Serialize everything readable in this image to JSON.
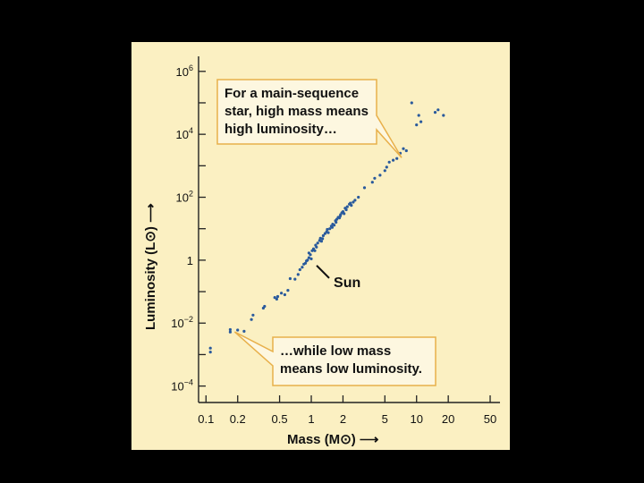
{
  "colors": {
    "background": "#000000",
    "panel": "#fbf0c2",
    "callout_fill": "#fdf7e0",
    "callout_border": "#e8b04a",
    "point": "#2a5a9c",
    "axis": "#222222"
  },
  "chart_data": {
    "type": "scatter",
    "x_scale": "log",
    "y_scale": "log",
    "xlabel": "Mass (M",
    "ylabel": "Luminosity (L",
    "solar_symbol": "⊙",
    "axis_arrow": "⟶",
    "xlim": [
      0.085,
      62
    ],
    "ylim": [
      3e-05,
      3000000
    ],
    "x_ticks": [
      {
        "value": 0.1,
        "label": "0.1"
      },
      {
        "value": 0.2,
        "label": "0.2"
      },
      {
        "value": 0.5,
        "label": "0.5"
      },
      {
        "value": 1,
        "label": "1"
      },
      {
        "value": 2,
        "label": "2"
      },
      {
        "value": 5,
        "label": "5"
      },
      {
        "value": 10,
        "label": "10"
      },
      {
        "value": 20,
        "label": "20"
      },
      {
        "value": 50,
        "label": "50"
      }
    ],
    "y_ticks": [
      {
        "value": 1000000,
        "base": "10",
        "exp": "6"
      },
      {
        "value": 100000,
        "base": "",
        "exp": ""
      },
      {
        "value": 10000,
        "base": "10",
        "exp": "4"
      },
      {
        "value": 1000,
        "base": "",
        "exp": ""
      },
      {
        "value": 100,
        "base": "10",
        "exp": "2"
      },
      {
        "value": 10,
        "base": "",
        "exp": ""
      },
      {
        "value": 1,
        "base": "1",
        "exp": ""
      },
      {
        "value": 0.1,
        "base": "",
        "exp": ""
      },
      {
        "value": 0.01,
        "base": "10",
        "exp": "−2"
      },
      {
        "value": 0.001,
        "base": "",
        "exp": ""
      },
      {
        "value": 0.0001,
        "base": "10",
        "exp": "−4"
      }
    ],
    "points": [
      [
        0.11,
        0.0012
      ],
      [
        0.11,
        0.0016
      ],
      [
        0.17,
        0.0062
      ],
      [
        0.17,
        0.0052
      ],
      [
        0.2,
        0.006
      ],
      [
        0.23,
        0.0055
      ],
      [
        0.27,
        0.013
      ],
      [
        0.28,
        0.018
      ],
      [
        0.35,
        0.03
      ],
      [
        0.36,
        0.034
      ],
      [
        0.45,
        0.065
      ],
      [
        0.47,
        0.058
      ],
      [
        0.48,
        0.07
      ],
      [
        0.52,
        0.09
      ],
      [
        0.56,
        0.08
      ],
      [
        0.6,
        0.11
      ],
      [
        0.63,
        0.26
      ],
      [
        0.7,
        0.25
      ],
      [
        0.75,
        0.35
      ],
      [
        0.78,
        0.5
      ],
      [
        0.82,
        0.6
      ],
      [
        0.85,
        0.75
      ],
      [
        0.88,
        0.8
      ],
      [
        0.9,
        0.95
      ],
      [
        0.92,
        1.0
      ],
      [
        0.95,
        1.2
      ],
      [
        0.98,
        1.5
      ],
      [
        1.0,
        1.1
      ],
      [
        1.02,
        2.0
      ],
      [
        1.05,
        2.3
      ],
      [
        1.08,
        2.0
      ],
      [
        1.1,
        3.0
      ],
      [
        1.15,
        3.5
      ],
      [
        1.2,
        4.2
      ],
      [
        1.22,
        5.0
      ],
      [
        1.25,
        4.0
      ],
      [
        1.3,
        6.0
      ],
      [
        1.35,
        7.0
      ],
      [
        1.4,
        8.0
      ],
      [
        1.45,
        7.5
      ],
      [
        1.5,
        10
      ],
      [
        1.55,
        12
      ],
      [
        1.6,
        14
      ],
      [
        1.65,
        13
      ],
      [
        1.7,
        18
      ],
      [
        1.75,
        20
      ],
      [
        1.8,
        23
      ],
      [
        1.85,
        22
      ],
      [
        1.9,
        28
      ],
      [
        1.95,
        32
      ],
      [
        2.0,
        35
      ],
      [
        2.05,
        30
      ],
      [
        2.1,
        45
      ],
      [
        2.2,
        50
      ],
      [
        2.3,
        60
      ],
      [
        2.4,
        55
      ],
      [
        2.5,
        70
      ],
      [
        2.6,
        80
      ],
      [
        2.8,
        100
      ],
      [
        0.95,
        1.7
      ],
      [
        1.12,
        2.6
      ],
      [
        1.28,
        4.8
      ],
      [
        1.42,
        9.5
      ],
      [
        1.58,
        11
      ],
      [
        1.72,
        16
      ],
      [
        1.88,
        25
      ],
      [
        2.15,
        40
      ],
      [
        2.35,
        65
      ],
      [
        3.2,
        200
      ],
      [
        3.8,
        300
      ],
      [
        4.0,
        400
      ],
      [
        4.5,
        500
      ],
      [
        5.0,
        700
      ],
      [
        5.2,
        900
      ],
      [
        5.5,
        1300
      ],
      [
        6.0,
        1500
      ],
      [
        6.5,
        1700
      ],
      [
        7.0,
        2500
      ],
      [
        7.5,
        3500
      ],
      [
        8.0,
        3000
      ],
      [
        10,
        20000
      ],
      [
        10.5,
        40000
      ],
      [
        11,
        25000
      ],
      [
        15,
        50000
      ],
      [
        16,
        60000
      ],
      [
        18,
        40000
      ],
      [
        9,
        100000
      ]
    ],
    "annotations": [
      {
        "lines": [
          "For a main-sequence",
          "star, high mass means",
          "high luminosity…"
        ],
        "target": [
          7.5,
          2200
        ]
      },
      {
        "lines": [
          "…while low mass",
          "means low luminosity."
        ],
        "target": [
          0.18,
          0.006
        ]
      },
      {
        "lines": [
          "Sun"
        ],
        "target": [
          1.0,
          1.0
        ]
      }
    ]
  }
}
